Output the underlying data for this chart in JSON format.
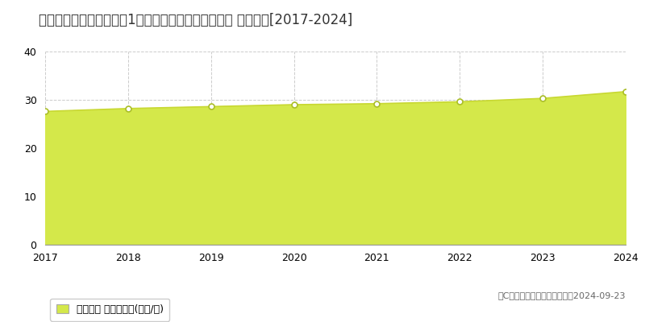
{
  "title": "千葉県成田市はなのき台1丁目２２番１３　公示地価 地価推移[2017-2024]",
  "years": [
    2017,
    2018,
    2019,
    2020,
    2021,
    2022,
    2023,
    2024
  ],
  "values": [
    27.6,
    28.2,
    28.6,
    29.0,
    29.2,
    29.6,
    30.3,
    31.7
  ],
  "ylim": [
    0,
    40
  ],
  "yticks": [
    0,
    10,
    20,
    30,
    40
  ],
  "line_color": "#c8d832",
  "fill_color": "#d4e84a",
  "fill_alpha": 1.0,
  "marker_color": "#ffffff",
  "marker_edge_color": "#aabe28",
  "bg_color": "#ffffff",
  "plot_bg_color": "#ffffff",
  "grid_color": "#cccccc",
  "grid_style": "--",
  "legend_label": "公示地価 平均坪単価(万円/坪)",
  "copyright_text": "（C）土地価格ドットコム　　2024-09-23",
  "title_fontsize": 12,
  "axis_fontsize": 9,
  "legend_fontsize": 9
}
